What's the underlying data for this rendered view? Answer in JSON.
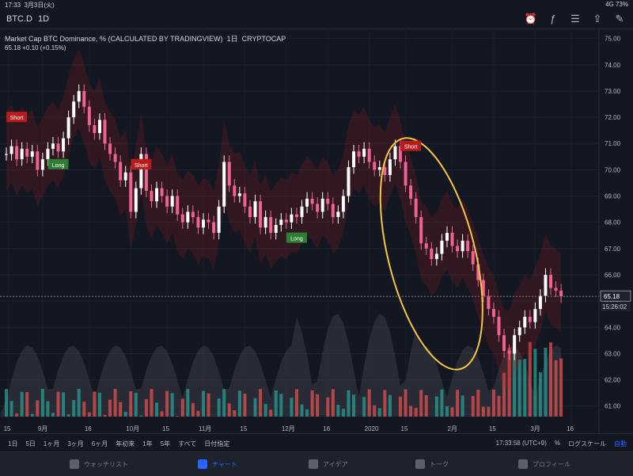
{
  "status": {
    "time": "17:33",
    "date": "3月3日(火)",
    "network": "4G",
    "battery": "73%"
  },
  "toolbar": {
    "symbol": "BTC.D",
    "interval": "1D",
    "icons": [
      "alarm-clock-icon",
      "indicator-icon",
      "sliders-icon",
      "share-icon",
      "drawing-icon"
    ]
  },
  "legend": {
    "title": "Market Cap BTC Dominance, % (CALCULATED BY TRADINGVIEW)",
    "period": "1日",
    "exchange": "CRYPTOCAP",
    "values": "65.18 +0.10 (+0.15%)"
  },
  "chart_data": {
    "type": "candlestick",
    "y_ticks": [
      "75.00",
      "74.00",
      "73.00",
      "72.00",
      "71.00",
      "70.00",
      "69.00",
      "68.00",
      "67.00",
      "66.00",
      "65.00",
      "64.00",
      "63.00",
      "62.00",
      "61.00"
    ],
    "ylim": [
      60.6,
      75.2
    ],
    "x_ticks": [
      "15",
      "9月",
      "16",
      "10月",
      "15",
      "11月",
      "15",
      "12月",
      "16",
      "2020",
      "15",
      "2月",
      "15",
      "3月",
      "16"
    ],
    "last_price": "65.18",
    "countdown": "15:26:02",
    "price_series": [
      70.6,
      70.9,
      70.4,
      70.8,
      70.5,
      70.7,
      70.0,
      70.4,
      70.8,
      71.0,
      70.7,
      71.2,
      72.0,
      72.6,
      73.0,
      72.4,
      71.7,
      71.4,
      71.9,
      71.0,
      70.6,
      70.3,
      69.6,
      69.9,
      68.4,
      69.3,
      70.6,
      69.2,
      68.8,
      69.3,
      69.0,
      68.6,
      69.0,
      68.3,
      68.0,
      68.4,
      68.2,
      67.8,
      68.1,
      68.0,
      67.6,
      68.6,
      70.3,
      69.4,
      69.0,
      69.1,
      68.6,
      68.2,
      68.8,
      67.8,
      68.2,
      67.6,
      67.9,
      68.1,
      68.0,
      68.3,
      68.2,
      68.6,
      68.9,
      68.7,
      68.4,
      68.9,
      68.7,
      68.2,
      68.4,
      69.0,
      70.1,
      70.7,
      70.5,
      70.8,
      70.3,
      70.0,
      70.1,
      69.8,
      70.4,
      70.9,
      70.3,
      69.4,
      68.9,
      68.2,
      67.2,
      67.0,
      66.6,
      66.8,
      67.3,
      67.6,
      67.1,
      66.9,
      67.3,
      66.9,
      66.4,
      65.8,
      65.2,
      64.7,
      64.4,
      63.7,
      63.1,
      63.0,
      63.7,
      64.0,
      64.4,
      64.2,
      64.7,
      65.2,
      66.0,
      65.5,
      65.4,
      65.18
    ],
    "annotations": [
      {
        "label": "Short",
        "type": "sell",
        "index": 2,
        "price": 72.0
      },
      {
        "label": "Long",
        "type": "buy",
        "index": 10,
        "price": 70.2
      },
      {
        "label": "Short",
        "type": "sell",
        "index": 26,
        "price": 70.2
      },
      {
        "label": "Long",
        "type": "buy",
        "index": 56,
        "price": 67.4
      },
      {
        "label": "Short",
        "type": "sell",
        "index": 78,
        "price": 70.9
      }
    ]
  },
  "rangebar": {
    "ranges": [
      "1日",
      "5日",
      "1ヶ月",
      "3ヶ月",
      "6ヶ月",
      "年初来",
      "1年",
      "5年",
      "すべて",
      "日付指定"
    ],
    "clock": "17:33:58 (UTC+9)",
    "percent": "%",
    "log": "ログスケール",
    "auto": "自動"
  },
  "tabs": [
    {
      "label": "ウォッチリスト",
      "icon": "watchlist-icon",
      "active": false
    },
    {
      "label": "チャート",
      "icon": "chart-icon",
      "active": true
    },
    {
      "label": "アイデア",
      "icon": "ideas-icon",
      "active": false
    },
    {
      "label": "トーク",
      "icon": "chat-icon",
      "active": false
    },
    {
      "label": "プロフィール",
      "icon": "profile-icon",
      "active": false
    }
  ],
  "colors": {
    "up": "#ffffff",
    "down": "#f06292",
    "sell": "#b71c1c",
    "buy": "#2e7d32",
    "highlight": "#f5c542"
  }
}
